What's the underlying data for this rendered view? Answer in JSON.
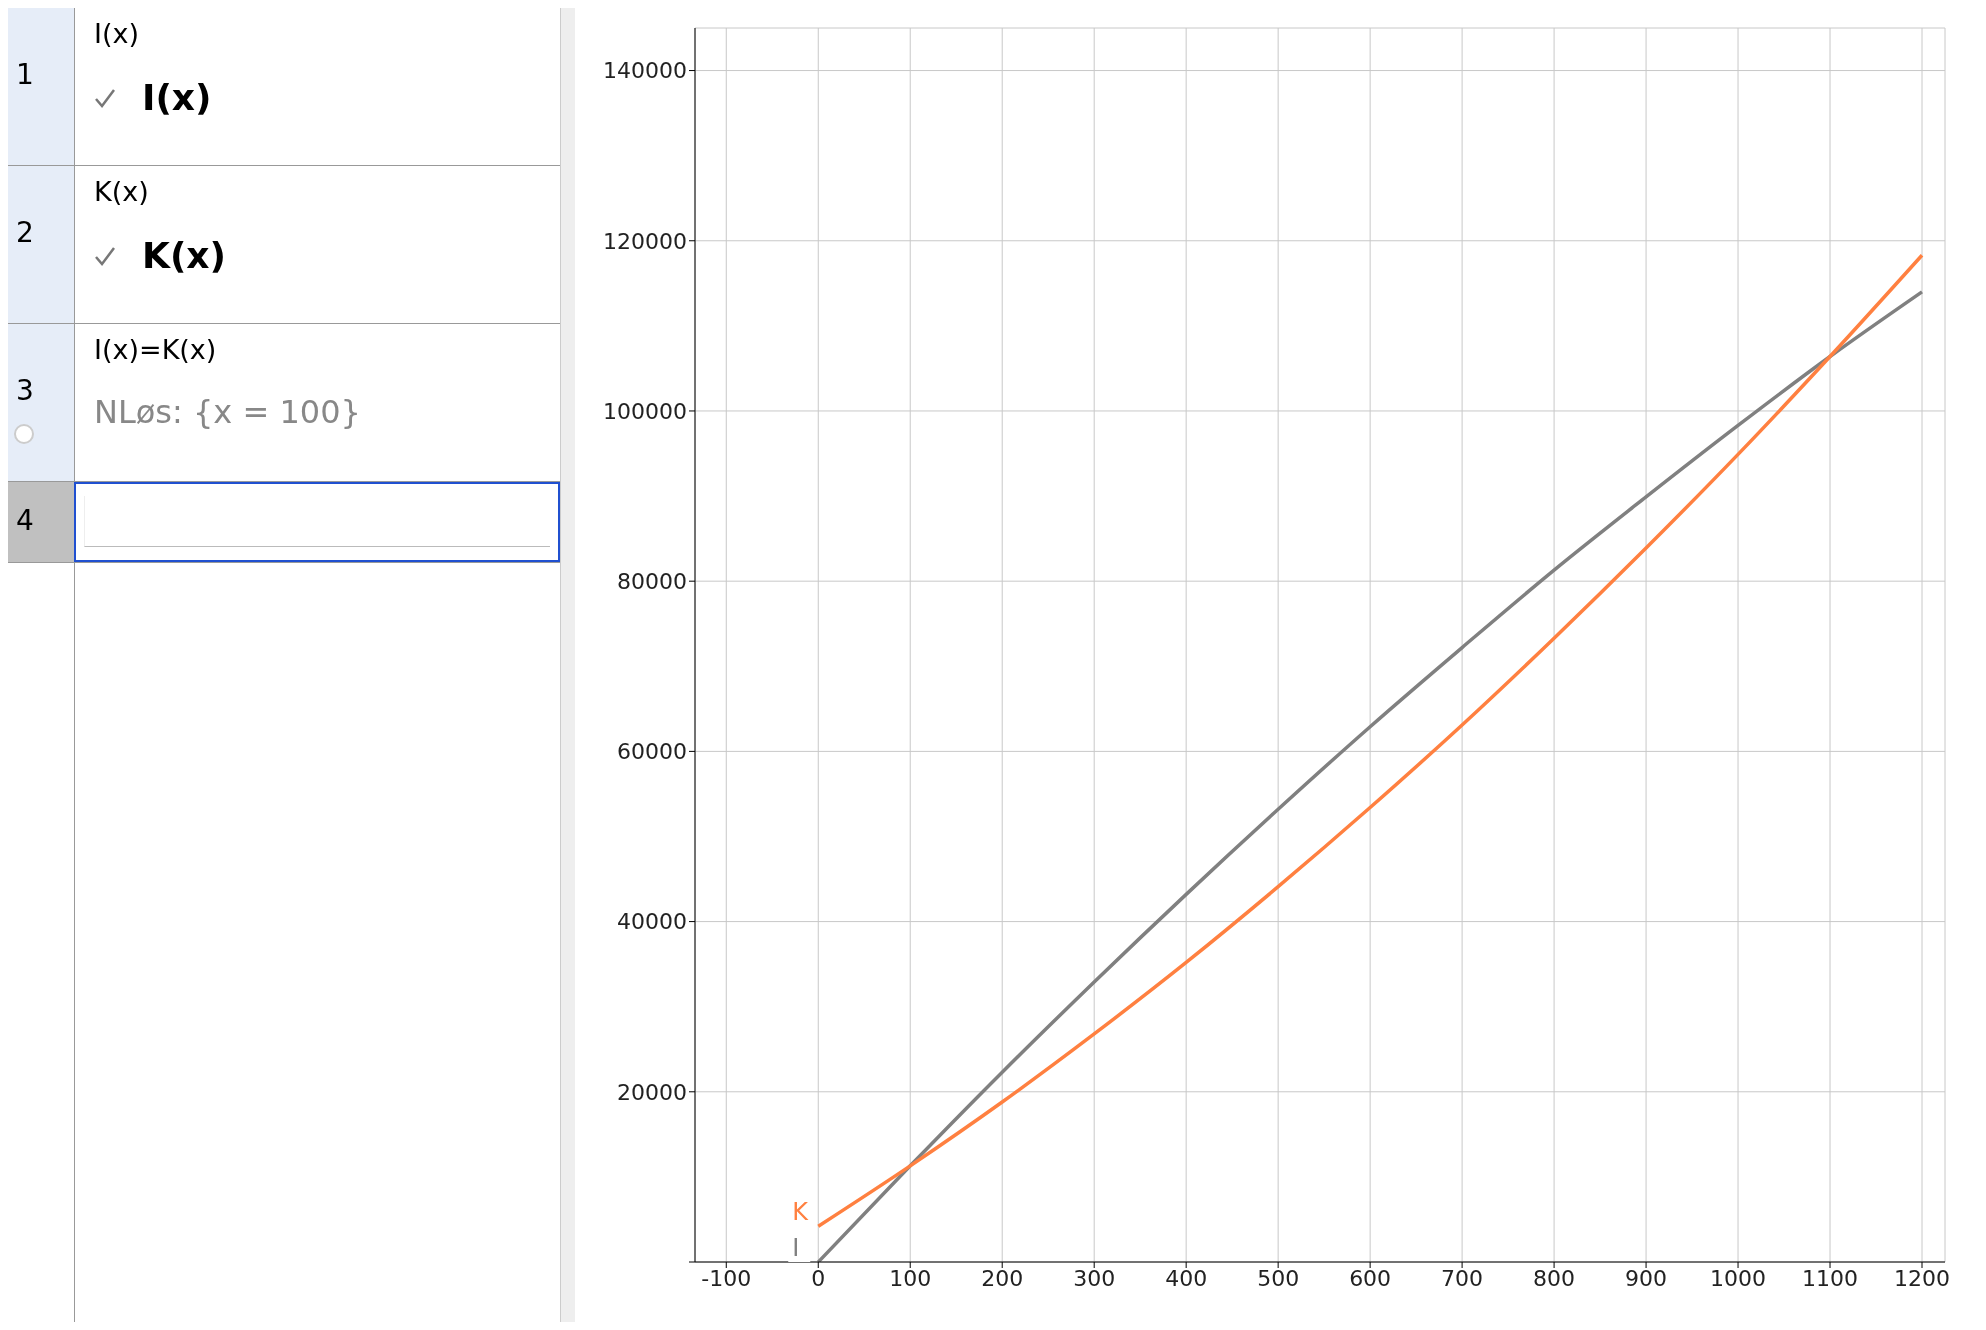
{
  "chart_data": {
    "type": "line",
    "x": [
      0,
      100,
      200,
      300,
      400,
      500,
      600,
      700,
      800,
      900,
      1000,
      1100,
      1200
    ],
    "series": [
      {
        "name": "I",
        "color": "#808080",
        "values": [
          0,
          11300,
          22300,
          32900,
          43200,
          53200,
          62900,
          72200,
          81300,
          89900,
          98300,
          106400,
          114000
        ]
      },
      {
        "name": "K",
        "color": "#ff8040",
        "values": [
          4200,
          11300,
          18800,
          26800,
          35200,
          44100,
          53400,
          63100,
          73300,
          83900,
          94900,
          106400,
          118300
        ]
      }
    ],
    "xlim": [
      -134,
      1225
    ],
    "xticks": [
      -100,
      {
        "value": 0,
        "label": "0"
      },
      100,
      200,
      300,
      400,
      500,
      600,
      700,
      800,
      900,
      1000,
      1100,
      1200
    ],
    "ylim": [
      0,
      145000
    ],
    "yticks": [
      {
        "value": 0,
        "label": null
      },
      20000,
      40000,
      60000,
      80000,
      100000,
      120000,
      140000
    ],
    "grid": true,
    "legend": false,
    "marker": "none",
    "line_style": "solid",
    "annotations": [
      "1",
      "I(x)",
      "I(x)",
      "2",
      "K(x)",
      "K(x)",
      "3",
      "I(x)=K(x)",
      "NLøs: {x = 100}",
      "4"
    ]
  }
}
